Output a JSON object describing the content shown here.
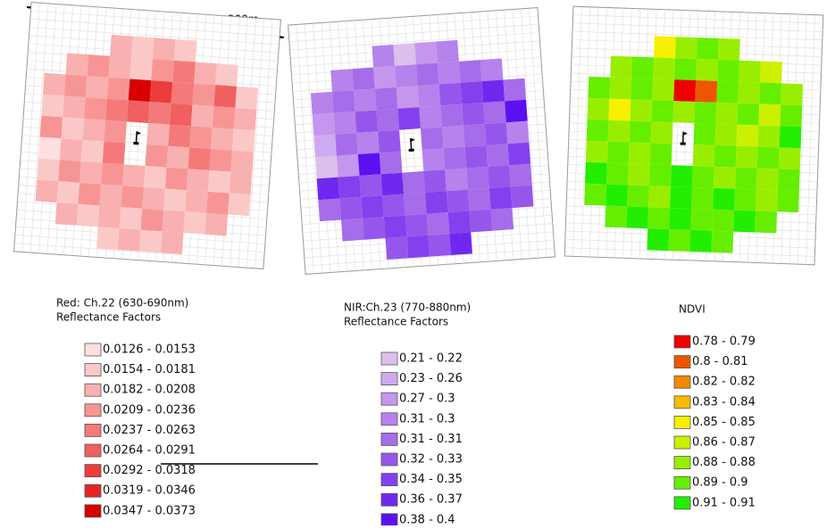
{
  "scale_label": "200m",
  "panels": [
    {
      "caption": [
        "Red: Ch.22 (630-690nm)",
        "Reflectance Factors"
      ],
      "legend": [
        {
          "label": "0.0126 - 0.0153",
          "color": "#fde0e0"
        },
        {
          "label": "0.0154 - 0.0181",
          "color": "#fbc8c8"
        },
        {
          "label": "0.0182 - 0.0208",
          "color": "#f9b0b0"
        },
        {
          "label": "0.0209 - 0.0236",
          "color": "#f79595"
        },
        {
          "label": "0.0237 - 0.0263",
          "color": "#f47a7a"
        },
        {
          "label": "0.0264 - 0.0291",
          "color": "#f06060"
        },
        {
          "label": "0.0292 - 0.0318",
          "color": "#ec3c3c"
        },
        {
          "label": "0.0319 - 0.0346",
          "color": "#e52525"
        },
        {
          "label": "0.0347 - 0.0373",
          "color": "#d80000"
        }
      ],
      "cells": [
        [
          null,
          null,
          null,
          2,
          1,
          2,
          1,
          null,
          null,
          null
        ],
        [
          null,
          2,
          3,
          2,
          1,
          3,
          4,
          2,
          1,
          null
        ],
        [
          2,
          3,
          2,
          3,
          8,
          6,
          4,
          3,
          5,
          1
        ],
        [
          1,
          2,
          3,
          4,
          5,
          4,
          5,
          2,
          3,
          2
        ],
        [
          3,
          1,
          2,
          3,
          null,
          2,
          4,
          3,
          2,
          1
        ],
        [
          0,
          2,
          1,
          4,
          null,
          3,
          2,
          4,
          3,
          2
        ],
        [
          1,
          3,
          2,
          3,
          2,
          1,
          3,
          2,
          1,
          2
        ],
        [
          2,
          1,
          3,
          2,
          3,
          2,
          1,
          2,
          3,
          1
        ],
        [
          null,
          2,
          1,
          2,
          1,
          3,
          2,
          1,
          2,
          null
        ],
        [
          null,
          null,
          null,
          1,
          2,
          1,
          2,
          null,
          null,
          null
        ]
      ]
    },
    {
      "caption": [
        "NIR:Ch.23 (770-880nm)",
        "Reflectance Factors"
      ],
      "legend": [
        {
          "label": "0.21 - 0.22",
          "color": "#dcc0ec"
        },
        {
          "label": "0.23 - 0.26",
          "color": "#d0aaf0"
        },
        {
          "label": "0.27 - 0.3",
          "color": "#c596ee"
        },
        {
          "label": "0.31 - 0.3",
          "color": "#b682ec"
        },
        {
          "label": "0.31 - 0.31",
          "color": "#a66cea"
        },
        {
          "label": "0.32 - 0.33",
          "color": "#9656ec"
        },
        {
          "label": "0.34 - 0.35",
          "color": "#8440ee"
        },
        {
          "label": "0.36 - 0.37",
          "color": "#7028f0"
        },
        {
          "label": "0.38 - 0.4",
          "color": "#5c10f0"
        }
      ],
      "cells": [
        [
          null,
          null,
          null,
          3,
          0,
          2,
          3,
          null,
          null,
          null
        ],
        [
          null,
          3,
          4,
          2,
          3,
          4,
          3,
          4,
          3,
          null
        ],
        [
          3,
          4,
          3,
          4,
          2,
          3,
          5,
          6,
          7,
          4
        ],
        [
          2,
          3,
          5,
          4,
          6,
          3,
          4,
          5,
          4,
          8
        ],
        [
          1,
          4,
          3,
          5,
          null,
          4,
          3,
          4,
          5,
          3
        ],
        [
          0,
          2,
          8,
          4,
          null,
          3,
          4,
          5,
          4,
          6
        ],
        [
          7,
          6,
          5,
          7,
          4,
          5,
          3,
          4,
          5,
          4
        ],
        [
          4,
          5,
          6,
          5,
          4,
          6,
          5,
          4,
          6,
          5
        ],
        [
          null,
          4,
          5,
          6,
          5,
          4,
          6,
          5,
          4,
          null
        ],
        [
          null,
          null,
          null,
          5,
          6,
          5,
          7,
          null,
          null,
          null
        ]
      ]
    },
    {
      "caption": [
        "NDVI"
      ],
      "legend": [
        {
          "label": "0.78 - 0.79",
          "color": "#ee0000"
        },
        {
          "label": "0.8 - 0.81",
          "color": "#ee5500"
        },
        {
          "label": "0.82 - 0.82",
          "color": "#f08800"
        },
        {
          "label": "0.83 - 0.84",
          "color": "#f4bb00"
        },
        {
          "label": "0.85 - 0.85",
          "color": "#f8f000"
        },
        {
          "label": "0.86 - 0.87",
          "color": "#ccf000"
        },
        {
          "label": "0.88 - 0.88",
          "color": "#99ee00"
        },
        {
          "label": "0.89 - 0.9",
          "color": "#66ee00"
        },
        {
          "label": "0.91 - 0.91",
          "color": "#22ee00"
        }
      ],
      "cells": [
        [
          null,
          null,
          null,
          4,
          6,
          7,
          6,
          null,
          null,
          null
        ],
        [
          null,
          6,
          7,
          6,
          7,
          6,
          7,
          6,
          5,
          null
        ],
        [
          7,
          6,
          7,
          6,
          0,
          1,
          7,
          6,
          7,
          6
        ],
        [
          6,
          4,
          6,
          7,
          6,
          7,
          6,
          7,
          5,
          7
        ],
        [
          7,
          6,
          7,
          6,
          null,
          7,
          6,
          5,
          6,
          8
        ],
        [
          6,
          7,
          6,
          7,
          null,
          6,
          7,
          6,
          7,
          6
        ],
        [
          8,
          7,
          6,
          7,
          8,
          7,
          6,
          7,
          6,
          7
        ],
        [
          7,
          8,
          7,
          6,
          8,
          7,
          8,
          7,
          6,
          7
        ],
        [
          null,
          7,
          8,
          7,
          8,
          7,
          7,
          8,
          7,
          null
        ],
        [
          null,
          null,
          null,
          8,
          7,
          8,
          7,
          null,
          null,
          null
        ]
      ]
    }
  ]
}
